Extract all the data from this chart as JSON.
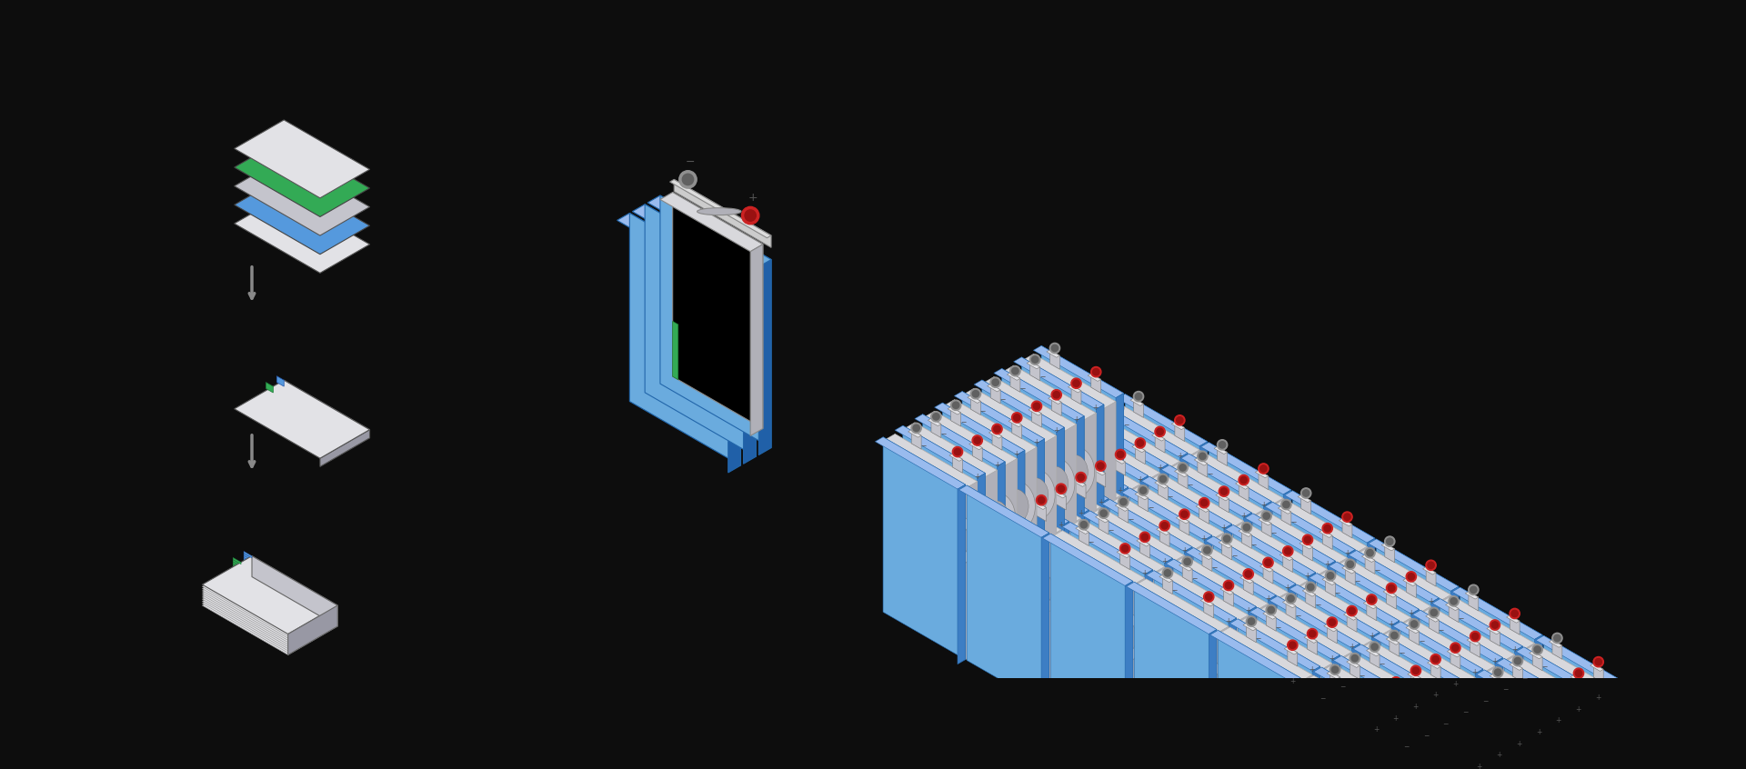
{
  "bg_color": "#0d0d0d",
  "silver_light": "#e2e2e6",
  "silver_mid": "#c4c4cc",
  "silver_dark": "#9898a4",
  "silver_edge": "#7878848",
  "blue_bright": "#5599dd",
  "blue_mid": "#3d7ec4",
  "blue_dark": "#2060a8",
  "blue_light": "#99bbee",
  "blue_face": "#6aabde",
  "green_bright": "#33aa55",
  "green_dark": "#1f8838",
  "red_terminal": "#cc2222",
  "red_dark": "#991111",
  "gray_terminal": "#909090",
  "gray_dark": "#606060",
  "white": "#f5f5f5",
  "black": "#111111",
  "top_silver": "#d8d8dc",
  "right_silver": "#b0b0b8"
}
